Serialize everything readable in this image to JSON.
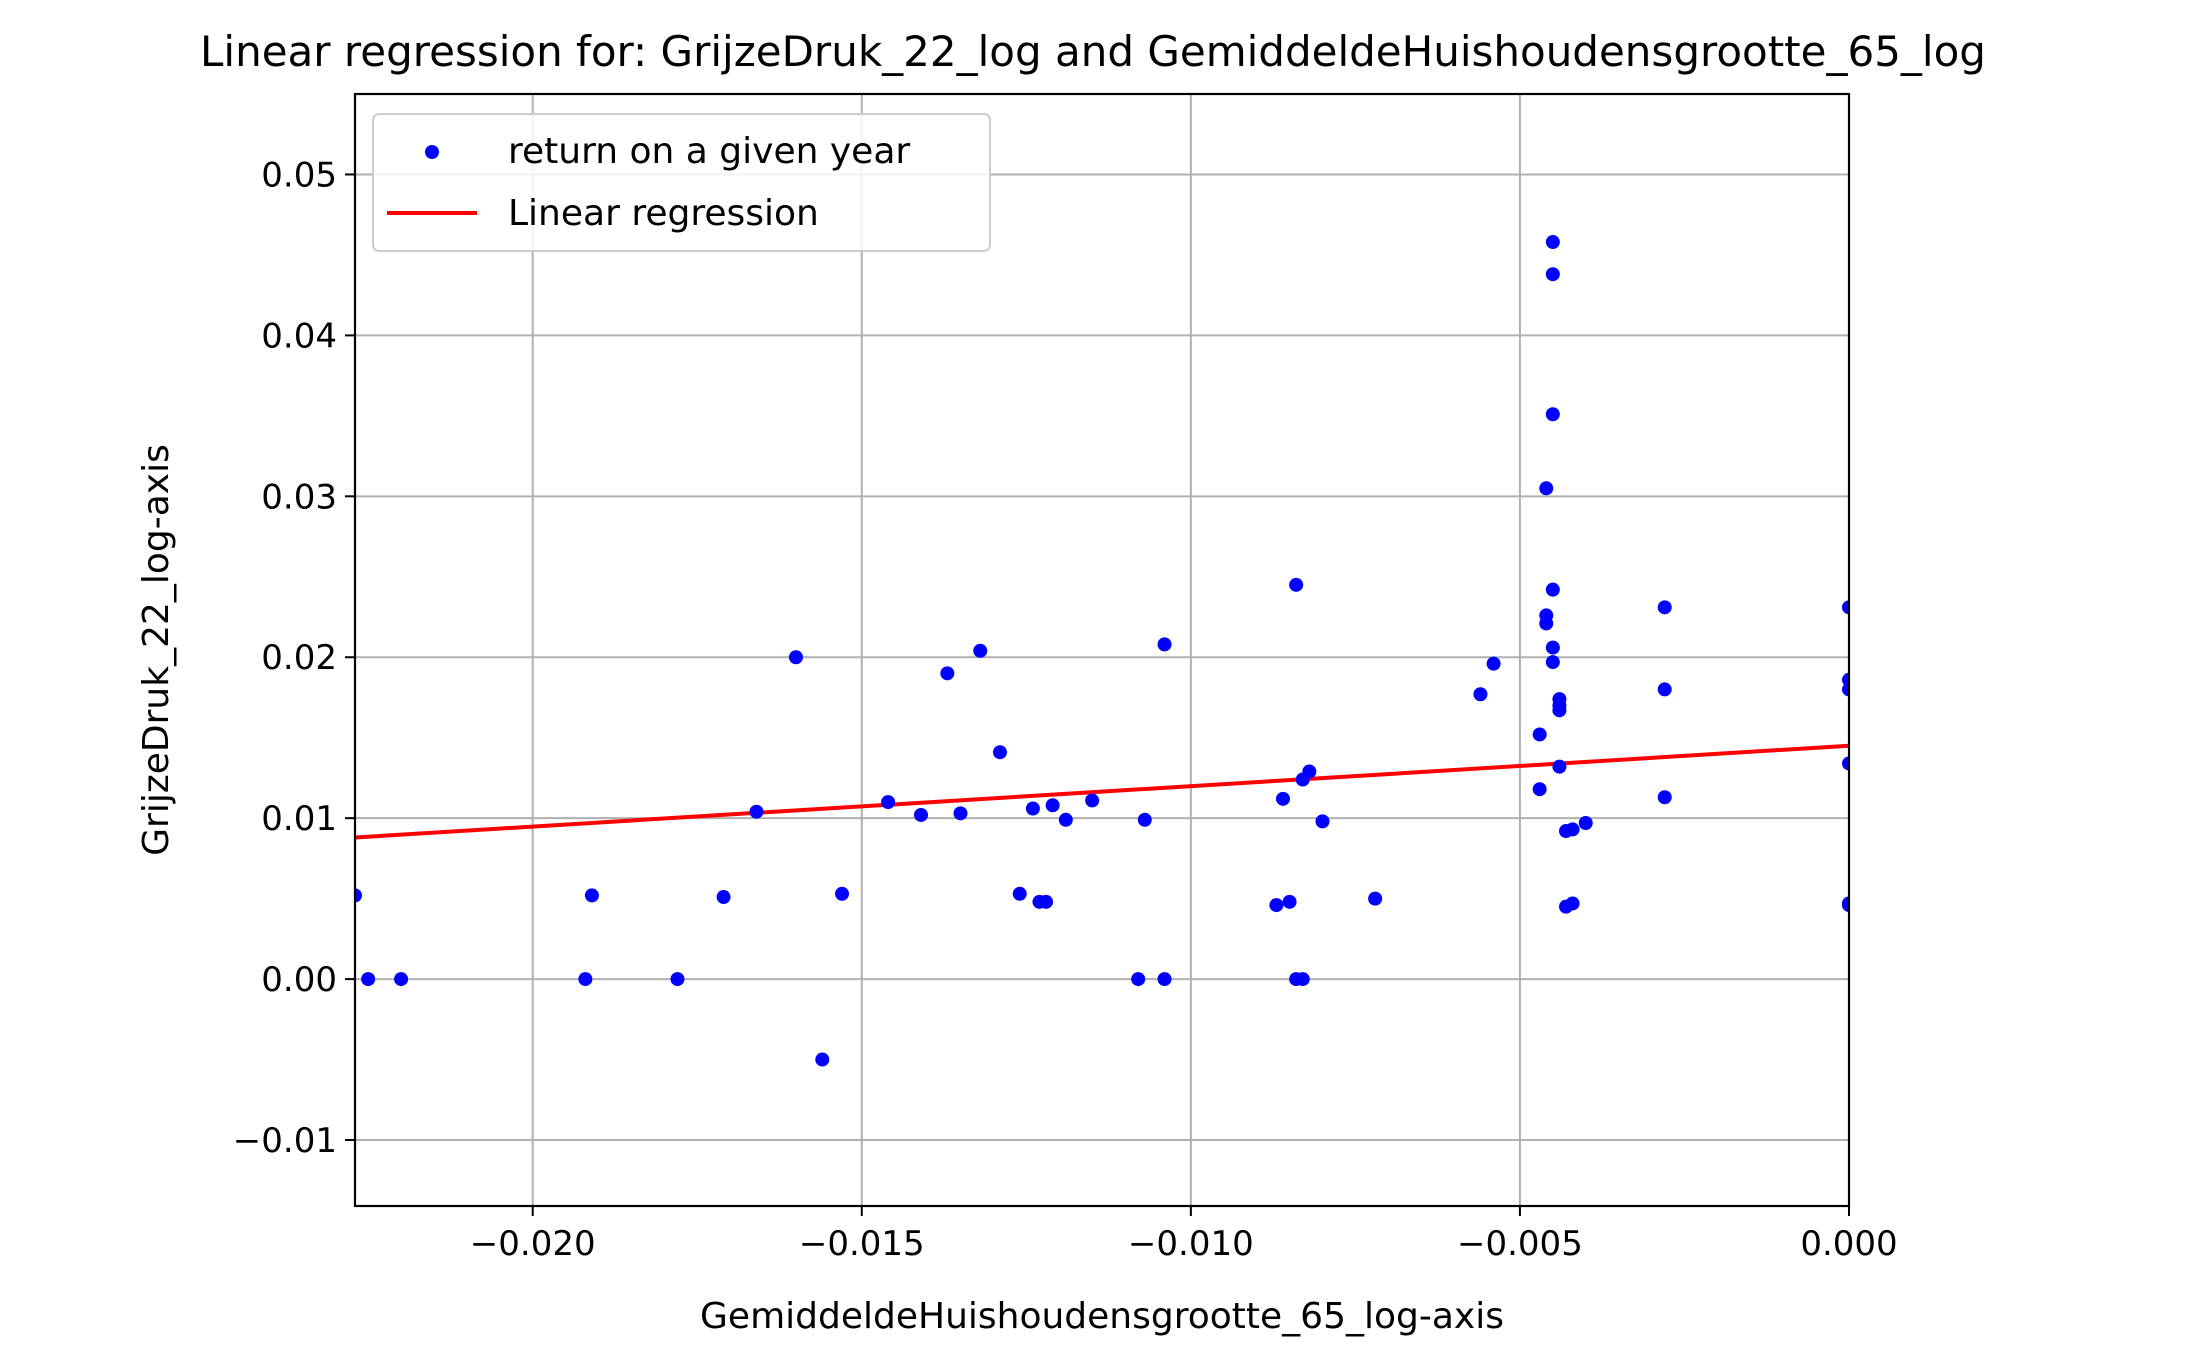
{
  "chart_data": {
    "type": "scatter",
    "title": "Linear regression for: GrijzeDruk_22_log and GemiddeldeHuishoudensgrootte_65_log",
    "xlabel": "GemiddeldeHuishoudensgrootte_65_log-axis",
    "ylabel": "GrijzeDruk_22_log-axis",
    "xlim": [
      -0.0227,
      0.0
    ],
    "ylim": [
      -0.0141,
      0.055
    ],
    "xticks": [
      -0.02,
      -0.015,
      -0.01,
      -0.005,
      0.0
    ],
    "xtick_labels": [
      "−0.020",
      "−0.015",
      "−0.010",
      "−0.005",
      "0.000"
    ],
    "yticks": [
      -0.01,
      0.0,
      0.01,
      0.02,
      0.03,
      0.04,
      0.05
    ],
    "ytick_labels": [
      "−0.01",
      "0.00",
      "0.01",
      "0.02",
      "0.03",
      "0.04",
      "0.05"
    ],
    "grid": true,
    "legend": {
      "location": "upper left",
      "entries": [
        {
          "label": "return on a given year",
          "kind": "marker",
          "color": "#0000ff"
        },
        {
          "label": "Linear regression",
          "kind": "line",
          "color": "#ff0000"
        }
      ]
    },
    "series": [
      {
        "name": "return on a given year",
        "kind": "scatter",
        "color": "#0000ff",
        "points": [
          [
            -0.0227,
            0.0052
          ],
          [
            -0.0225,
            0.0
          ],
          [
            -0.022,
            0.0
          ],
          [
            -0.0192,
            0.0
          ],
          [
            -0.0191,
            0.0052
          ],
          [
            -0.0178,
            0.0
          ],
          [
            -0.0171,
            0.0051
          ],
          [
            -0.0166,
            0.0104
          ],
          [
            -0.016,
            0.02
          ],
          [
            -0.0156,
            -0.005
          ],
          [
            -0.0153,
            0.0053
          ],
          [
            -0.0146,
            0.011
          ],
          [
            -0.0141,
            0.0102
          ],
          [
            -0.0137,
            0.019
          ],
          [
            -0.0135,
            0.0103
          ],
          [
            -0.0132,
            0.0204
          ],
          [
            -0.0129,
            0.0141
          ],
          [
            -0.0126,
            0.0053
          ],
          [
            -0.0124,
            0.0106
          ],
          [
            -0.0123,
            0.0048
          ],
          [
            -0.0122,
            0.0048
          ],
          [
            -0.0121,
            0.0108
          ],
          [
            -0.0119,
            0.0099
          ],
          [
            -0.0115,
            0.0111
          ],
          [
            -0.0108,
            0.0
          ],
          [
            -0.0107,
            0.0099
          ],
          [
            -0.0104,
            0.0
          ],
          [
            -0.0104,
            0.0208
          ],
          [
            -0.0087,
            0.0046
          ],
          [
            -0.0086,
            0.0112
          ],
          [
            -0.0085,
            0.0048
          ],
          [
            -0.0084,
            0.0245
          ],
          [
            -0.0084,
            0.0
          ],
          [
            -0.0083,
            0.0
          ],
          [
            -0.0083,
            0.0124
          ],
          [
            -0.0082,
            0.0129
          ],
          [
            -0.008,
            0.0098
          ],
          [
            -0.0072,
            0.005
          ],
          [
            -0.0056,
            0.0177
          ],
          [
            -0.0054,
            0.0196
          ],
          [
            -0.0047,
            0.0118
          ],
          [
            -0.0047,
            0.0152
          ],
          [
            -0.0046,
            0.0221
          ],
          [
            -0.0046,
            0.0226
          ],
          [
            -0.0046,
            0.0305
          ],
          [
            -0.0045,
            0.0351
          ],
          [
            -0.0045,
            0.0438
          ],
          [
            -0.0045,
            0.0458
          ],
          [
            -0.0045,
            0.0197
          ],
          [
            -0.0045,
            0.0206
          ],
          [
            -0.0045,
            0.0242
          ],
          [
            -0.0044,
            0.0167
          ],
          [
            -0.0044,
            0.017
          ],
          [
            -0.0044,
            0.0174
          ],
          [
            -0.0044,
            0.0132
          ],
          [
            -0.0043,
            0.0045
          ],
          [
            -0.0043,
            0.0092
          ],
          [
            -0.0042,
            0.0047
          ],
          [
            -0.0042,
            0.0093
          ],
          [
            -0.004,
            0.0097
          ],
          [
            -0.0028,
            0.0231
          ],
          [
            -0.0028,
            0.018
          ],
          [
            -0.0028,
            0.0113
          ],
          [
            0.0,
            0.0231
          ],
          [
            0.0,
            0.0186
          ],
          [
            0.0,
            0.018
          ],
          [
            0.0,
            0.0134
          ],
          [
            0.0,
            0.0046
          ],
          [
            0.0,
            0.0047
          ]
        ]
      },
      {
        "name": "Linear regression",
        "kind": "line",
        "color": "#ff0000",
        "x": [
          -0.0227,
          0.0
        ],
        "y": [
          0.0088,
          0.0145
        ]
      }
    ]
  }
}
